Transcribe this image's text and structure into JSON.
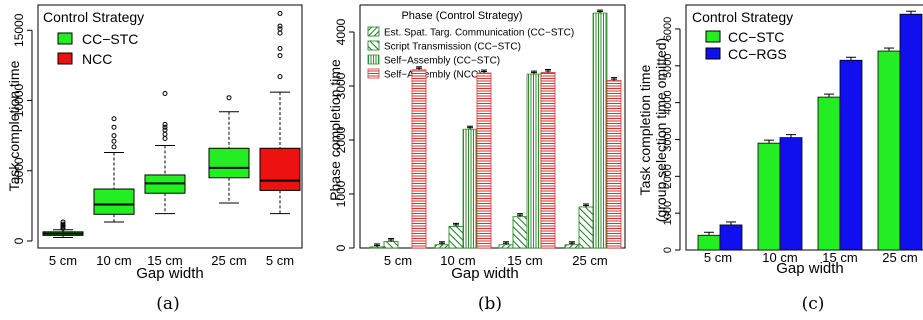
{
  "chart_data": [
    {
      "type": "box",
      "caption": "(a)",
      "xlabel": "Gap width",
      "ylabel": "Task completion time",
      "ylim": [
        -500,
        16800
      ],
      "yticks": [
        0,
        5000,
        10000,
        15000
      ],
      "legend": {
        "title": "Control Strategy",
        "position": "top-left",
        "entries": [
          {
            "label": "CC−STC",
            "color": "#22ee22"
          },
          {
            "label": "NCC",
            "color": "#ee1111"
          }
        ]
      },
      "categories": [
        "5 cm",
        "10 cm",
        "15 cm",
        "25 cm",
        "5 cm"
      ],
      "boxes": [
        {
          "group": "CC−STC",
          "color": "#22ee22",
          "min": 250,
          "q1": 400,
          "median": 520,
          "q3": 650,
          "max": 800,
          "outliers": [
            900,
            1000,
            1100,
            1200,
            1350
          ]
        },
        {
          "group": "CC−STC",
          "color": "#22ee22",
          "min": 1350,
          "q1": 1900,
          "median": 2600,
          "q3": 3700,
          "max": 6300,
          "outliers": [
            6700,
            7100,
            7500,
            8100,
            8700
          ]
        },
        {
          "group": "CC−STC",
          "color": "#22ee22",
          "min": 1950,
          "q1": 3400,
          "median": 4100,
          "q3": 4700,
          "max": 6800,
          "outliers": [
            7300,
            7600,
            7900,
            8100,
            8300,
            10500
          ]
        },
        {
          "group": "CC−STC",
          "color": "#22ee22",
          "min": 2700,
          "q1": 4500,
          "median": 5200,
          "q3": 6600,
          "max": 9200,
          "outliers": [
            10200
          ]
        },
        {
          "group": "NCC",
          "color": "#ee1111",
          "min": 1950,
          "q1": 3600,
          "median": 4300,
          "q3": 6600,
          "max": 10600,
          "outliers": [
            11700,
            13200,
            13700,
            14800,
            15100,
            15300,
            16200
          ]
        }
      ]
    },
    {
      "type": "bar",
      "caption": "(b)",
      "xlabel": "Gap width",
      "ylabel": "Phase completion time",
      "ylim": [
        0,
        4500
      ],
      "yticks": [
        0,
        1000,
        2000,
        3000,
        4000
      ],
      "legend": {
        "title": "Phase (Control Strategy)",
        "position": "top-left"
      },
      "categories": [
        "5 cm",
        "10 cm",
        "15 cm",
        "25 cm"
      ],
      "series": [
        {
          "name": "Est. Spat. Targ. Communication (CC−STC)",
          "color": "#1a7a1a",
          "pattern": "hatch-up",
          "values": [
            20,
            60,
            60,
            60
          ]
        },
        {
          "name": "Script Transmission (CC−STC)",
          "color": "#1a7a1a",
          "pattern": "hatch-down",
          "values": [
            120,
            400,
            580,
            760
          ]
        },
        {
          "name": "Self−Assembly (CC−STC)",
          "color": "#2e8b2e",
          "pattern": "vertical",
          "values": [
            0,
            2200,
            3220,
            4350
          ]
        },
        {
          "name": "Self−Assembly (NCC)",
          "color": "#e03030",
          "pattern": "horizontal",
          "values": [
            3300,
            3240,
            3250,
            3100
          ]
        }
      ]
    },
    {
      "type": "bar",
      "caption": "(c)",
      "xlabel": "Gap width",
      "ylabel": "Task completion time",
      "ylabel2": "(group selection time omitted)",
      "ylim": [
        0,
        6650
      ],
      "yticks": [
        0,
        1000,
        2000,
        3000,
        4000,
        5000,
        6000
      ],
      "legend": {
        "title": "Control Strategy",
        "position": "top-left"
      },
      "categories": [
        "5 cm",
        "10 cm",
        "15 cm",
        "25 cm"
      ],
      "series": [
        {
          "name": "CC−STC",
          "color": "#22ee22",
          "values": [
            400,
            2900,
            4150,
            5400
          ]
        },
        {
          "name": "CC−RGS",
          "color": "#1010ee",
          "values": [
            680,
            3050,
            5150,
            6400
          ]
        }
      ]
    }
  ]
}
